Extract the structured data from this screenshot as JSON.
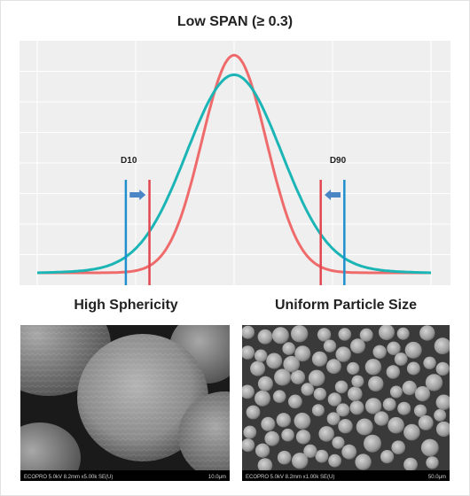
{
  "title": "Low SPAN (≥ 0.3)",
  "chart_data": {
    "type": "line",
    "xlim": [
      0,
      1
    ],
    "ylim": [
      0,
      1.05
    ],
    "grid": true,
    "series": [
      {
        "color": "#ef6b6b",
        "peak": 1.0,
        "sigma": 0.082
      },
      {
        "color": "#1cb5b5",
        "peak": 0.89,
        "sigma": 0.12
      }
    ],
    "markers": [
      {
        "label": "D10",
        "red_x": 0.285,
        "blue_x": 0.225,
        "arrow": "right"
      },
      {
        "label": "D90",
        "red_x": 0.72,
        "blue_x": 0.78,
        "arrow": "left"
      }
    ],
    "colors": {
      "red": "#e2464f",
      "blue": "#1f8fce",
      "arrow": "#4a86c5"
    }
  },
  "captions": {
    "left": "High Sphericity",
    "right": "Uniform Particle Size"
  },
  "sem_images": {
    "left": {
      "info": "ECOPRO 5.0kV 8.2mm x5.00k SE(U)",
      "scale": "10.0μm"
    },
    "right": {
      "info": "ECOPRO 5.0kV 8.2mm x1.00k SE(U)",
      "scale": "50.0μm"
    }
  }
}
